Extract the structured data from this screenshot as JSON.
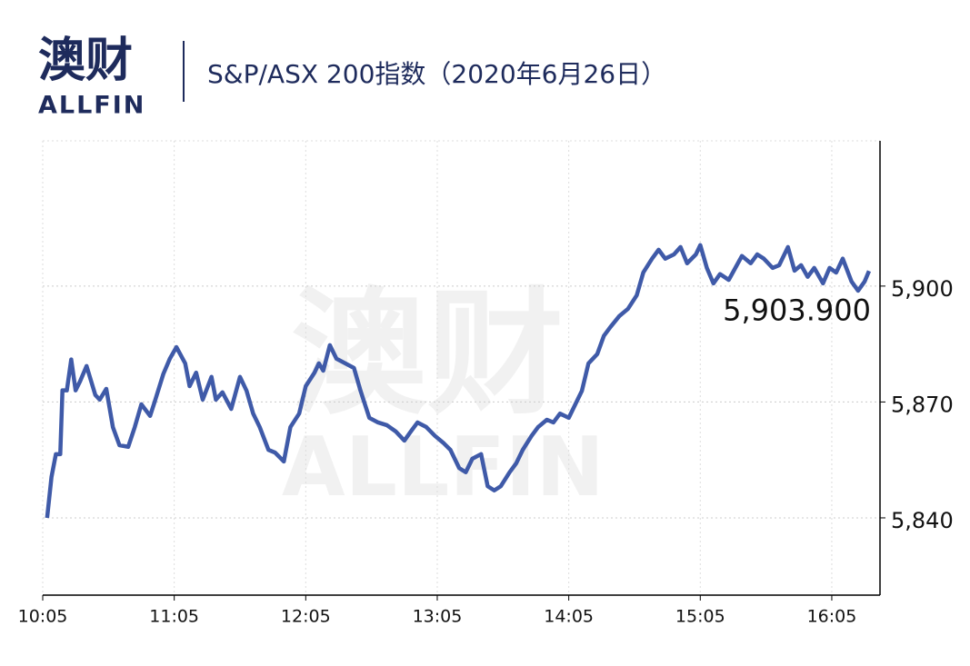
{
  "logo": {
    "cn": "澳财",
    "en": "ALLFIN"
  },
  "chart_data": {
    "type": "line",
    "title": "S&P/ASX 200指数（2020年6月26日）",
    "x": [
      "10:07",
      "10:09",
      "10:11",
      "10:13",
      "10:14",
      "10:16",
      "10:18",
      "10:20",
      "10:22",
      "10:25",
      "10:29",
      "10:31",
      "10:34",
      "10:37",
      "10:40",
      "10:44",
      "10:47",
      "10:50",
      "10:54",
      "10:56",
      "11:00",
      "11:03",
      "11:06",
      "11:10",
      "11:12",
      "11:15",
      "11:18",
      "11:22",
      "11:24",
      "11:27",
      "11:31",
      "11:35",
      "11:38",
      "11:41",
      "11:44",
      "11:48",
      "11:51",
      "11:55",
      "11:58",
      "12:02",
      "12:05",
      "12:09",
      "12:11",
      "12:13",
      "12:16",
      "12:19",
      "12:23",
      "12:27",
      "12:30",
      "12:34",
      "12:38",
      "12:42",
      "12:46",
      "12:50",
      "12:53",
      "12:56",
      "13:00",
      "13:04",
      "13:08",
      "13:11",
      "13:15",
      "13:18",
      "13:21",
      "13:25",
      "13:28",
      "13:31",
      "13:34",
      "13:38",
      "13:41",
      "13:44",
      "13:48",
      "13:51",
      "13:55",
      "13:58",
      "14:01",
      "14:05",
      "14:08",
      "14:11",
      "14:14",
      "14:18",
      "14:21",
      "14:24",
      "14:28",
      "14:32",
      "14:36",
      "14:39",
      "14:43",
      "14:46",
      "14:49",
      "14:53",
      "14:56",
      "14:59",
      "15:03",
      "15:05",
      "15:08",
      "15:11",
      "15:14",
      "15:18",
      "15:21",
      "15:24",
      "15:28",
      "15:31",
      "15:34",
      "15:38",
      "15:41",
      "15:45",
      "15:48",
      "15:51",
      "15:54",
      "15:57",
      "16:01",
      "16:04",
      "16:07",
      "16:10",
      "16:14",
      "16:17",
      "16:20",
      "16:22"
    ],
    "series": [
      {
        "name": "S&P/ASX 200",
        "color": "#3f5aa8",
        "values": [
          5840,
          5850.6,
          5856.5,
          5856.5,
          5873,
          5873,
          5881,
          5873,
          5875.3,
          5879.3,
          5871.8,
          5870.6,
          5873.4,
          5863.5,
          5858.8,
          5858.4,
          5863.5,
          5869.4,
          5866.4,
          5869.9,
          5877.2,
          5881.2,
          5884.2,
          5880,
          5874.1,
          5877.6,
          5870.6,
          5876.5,
          5870.6,
          5872.5,
          5868.2,
          5876.5,
          5872.9,
          5867,
          5863.5,
          5857.6,
          5856.9,
          5854.6,
          5863.5,
          5867,
          5874.1,
          5877.6,
          5880,
          5878.1,
          5884.7,
          5881.2,
          5880,
          5878.8,
          5872.9,
          5865.9,
          5864.7,
          5864,
          5862.4,
          5860,
          5862.4,
          5864.7,
          5863.5,
          5861.2,
          5859.3,
          5857.6,
          5852.9,
          5851.8,
          5855.3,
          5856.5,
          5848.2,
          5847.1,
          5848.2,
          5851.8,
          5854.1,
          5857.6,
          5861.2,
          5863.5,
          5865.4,
          5864.7,
          5867,
          5865.9,
          5869.4,
          5872.9,
          5880,
          5882.4,
          5887.1,
          5889.4,
          5892.2,
          5894.1,
          5897.6,
          5903.5,
          5907.1,
          5909.4,
          5907.1,
          5908.2,
          5910.1,
          5905.9,
          5908.2,
          5910.6,
          5904.7,
          5900.7,
          5903.1,
          5901.6,
          5904.7,
          5907.8,
          5905.9,
          5908.2,
          5907.1,
          5904.7,
          5905.4,
          5910.1,
          5904,
          5905.4,
          5902.4,
          5904.7,
          5900.7,
          5904.7,
          5903.5,
          5907.1,
          5901.2,
          5898.8,
          5901.2,
          5903.9
        ]
      }
    ],
    "annotations": [
      {
        "text": "5,903.900",
        "x": "16:22",
        "y": 5903.9
      }
    ],
    "xlim": [
      "10:05",
      "16:27"
    ],
    "xticks": [
      "10:05",
      "11:05",
      "12:05",
      "13:05",
      "14:05",
      "15:05",
      "16:05"
    ],
    "ylim": [
      5820,
      5937.6
    ],
    "yticks": [
      {
        "value": 5840,
        "label": "5,840"
      },
      {
        "value": 5870,
        "label": "5,870"
      },
      {
        "value": 5900,
        "label": "5,900"
      }
    ],
    "grid": true
  }
}
